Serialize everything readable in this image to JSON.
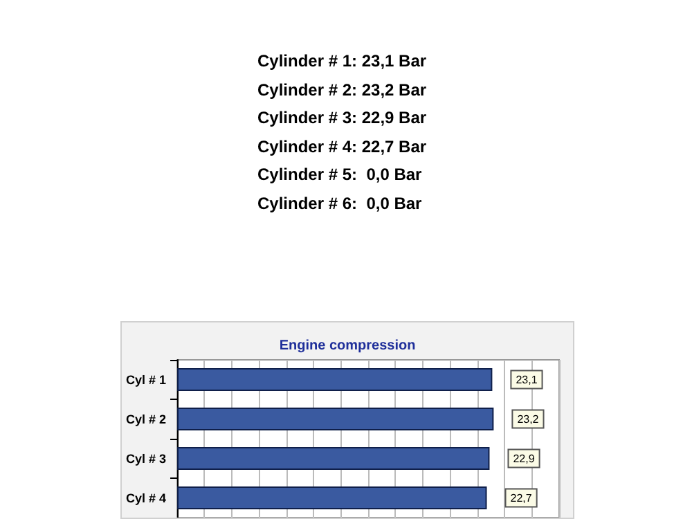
{
  "chart_data": {
    "type": "bar",
    "orientation": "horizontal",
    "title": "Engine compression",
    "annotations": [
      "Cylinder # 1: 23,1 Bar",
      "Cylinder # 2: 23,2 Bar",
      "Cylinder # 3: 22,9 Bar",
      "Cylinder # 4: 22,7 Bar",
      "Cylinder # 5:  0,0 Bar",
      "Cylinder # 6:  0,0 Bar"
    ],
    "categories": [
      "Cyl # 1",
      "Cyl # 2",
      "Cyl # 3",
      "Cyl # 4"
    ],
    "values": [
      23.1,
      23.2,
      22.9,
      22.7
    ],
    "value_labels": [
      "23,1",
      "23,2",
      "22,9",
      "22,7"
    ],
    "color": "#3a5aa0",
    "xlim": [
      0,
      28
    ],
    "xticks": [
      {
        "value": 0,
        "label": null
      },
      {
        "value": 2,
        "label": null
      },
      {
        "value": 4,
        "label": null
      },
      {
        "value": 6,
        "label": null
      },
      {
        "value": 8,
        "label": null
      },
      {
        "value": 10,
        "label": null
      },
      {
        "value": 12,
        "label": null
      },
      {
        "value": 14,
        "label": null
      },
      {
        "value": 16,
        "label": null
      },
      {
        "value": 18,
        "label": null
      },
      {
        "value": 20,
        "label": null
      },
      {
        "value": 22,
        "label": null
      },
      {
        "value": 24,
        "label": null
      },
      {
        "value": 26,
        "label": null
      },
      {
        "value": 28,
        "label": null
      }
    ],
    "tick_labels": "y",
    "grid": "x"
  }
}
